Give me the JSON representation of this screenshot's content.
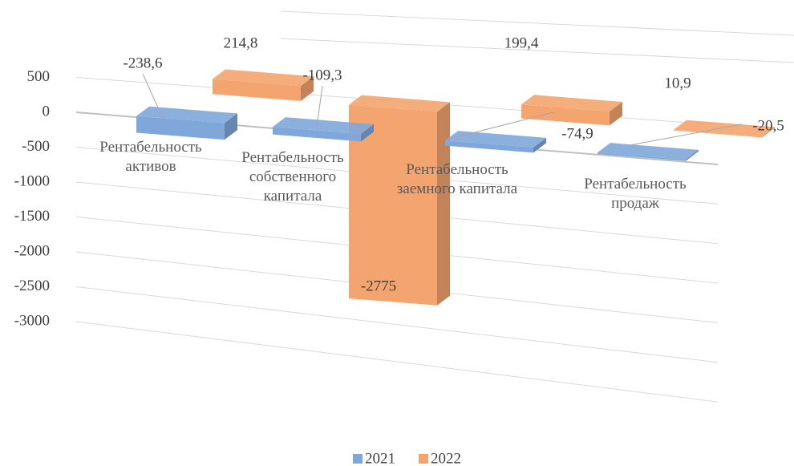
{
  "chart_data": {
    "type": "bar3d",
    "categories": [
      "Рентабельность активов",
      "Рентабельность собственного капитала",
      "Рентабельность заемного капитала",
      "Рентабельность продаж"
    ],
    "series": [
      {
        "name": "2021",
        "color": "#7fa7da",
        "values": [
          -238.6,
          -109.3,
          -74.9,
          -20.5
        ],
        "value_labels": [
          "-238,6",
          "-109,3",
          "-74,9",
          "-20,5"
        ]
      },
      {
        "name": "2022",
        "color": "#f4a46e",
        "values": [
          214.8,
          -2775,
          199.4,
          10.9
        ],
        "value_labels": [
          "214,8",
          "-2775",
          "199,4",
          "10,9"
        ]
      }
    ],
    "ylim": [
      -3000,
      500
    ],
    "yticks": [
      500,
      0,
      -500,
      -1000,
      -1500,
      -2000,
      -2500,
      -3000
    ],
    "grid": true,
    "legend": "bottom"
  }
}
